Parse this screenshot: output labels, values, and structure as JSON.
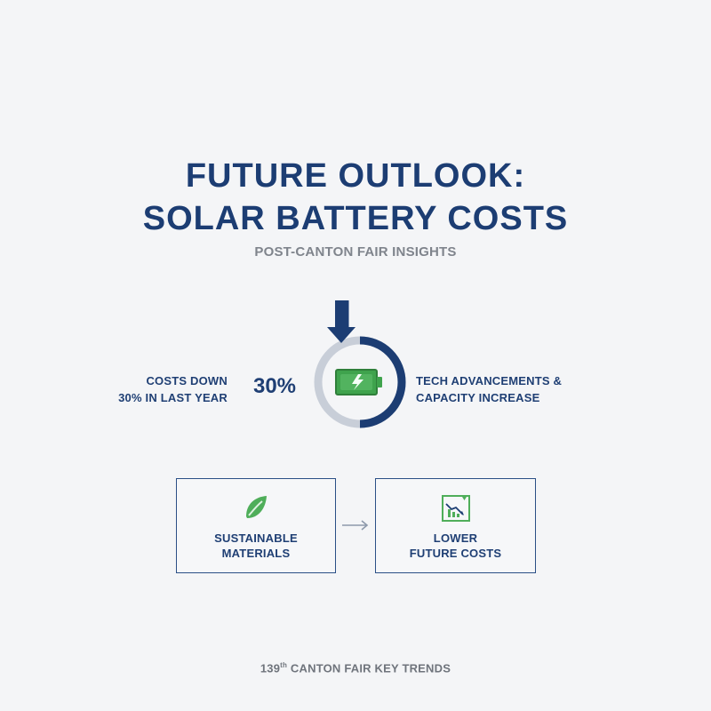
{
  "header": {
    "title_line1": "FUTURE OUTLOOK:",
    "title_line2": "SOLAR BATTERY COSTS",
    "subtitle": "POST-CANTON FAIR INSIGHTS"
  },
  "metric": {
    "left_line1": "COSTS DOWN",
    "left_line2": "30% IN LAST YEAR",
    "percent_text": "30%",
    "right_line1": "TECH ADVANCEMENTS &",
    "right_line2": "CAPACITY INCREASE",
    "progress_fraction": 0.5,
    "colors": {
      "accent": "#1c3d73",
      "track": "#c8ced8",
      "battery": "#3fa34d"
    },
    "icons": [
      "down-arrow-icon",
      "battery-charging-icon"
    ]
  },
  "flow": {
    "box1": {
      "icon": "leaf-icon",
      "label_line1": "SUSTAINABLE",
      "label_line2": "MATERIALS"
    },
    "box2": {
      "icon": "declining-chart-icon",
      "label_line1": "LOWER",
      "label_line2": "FUTURE COSTS"
    },
    "connector_icon": "right-arrow-icon"
  },
  "footer": {
    "prefix": "139",
    "superscript": "th",
    "suffix": " CANTON FAIR KEY TRENDS"
  }
}
